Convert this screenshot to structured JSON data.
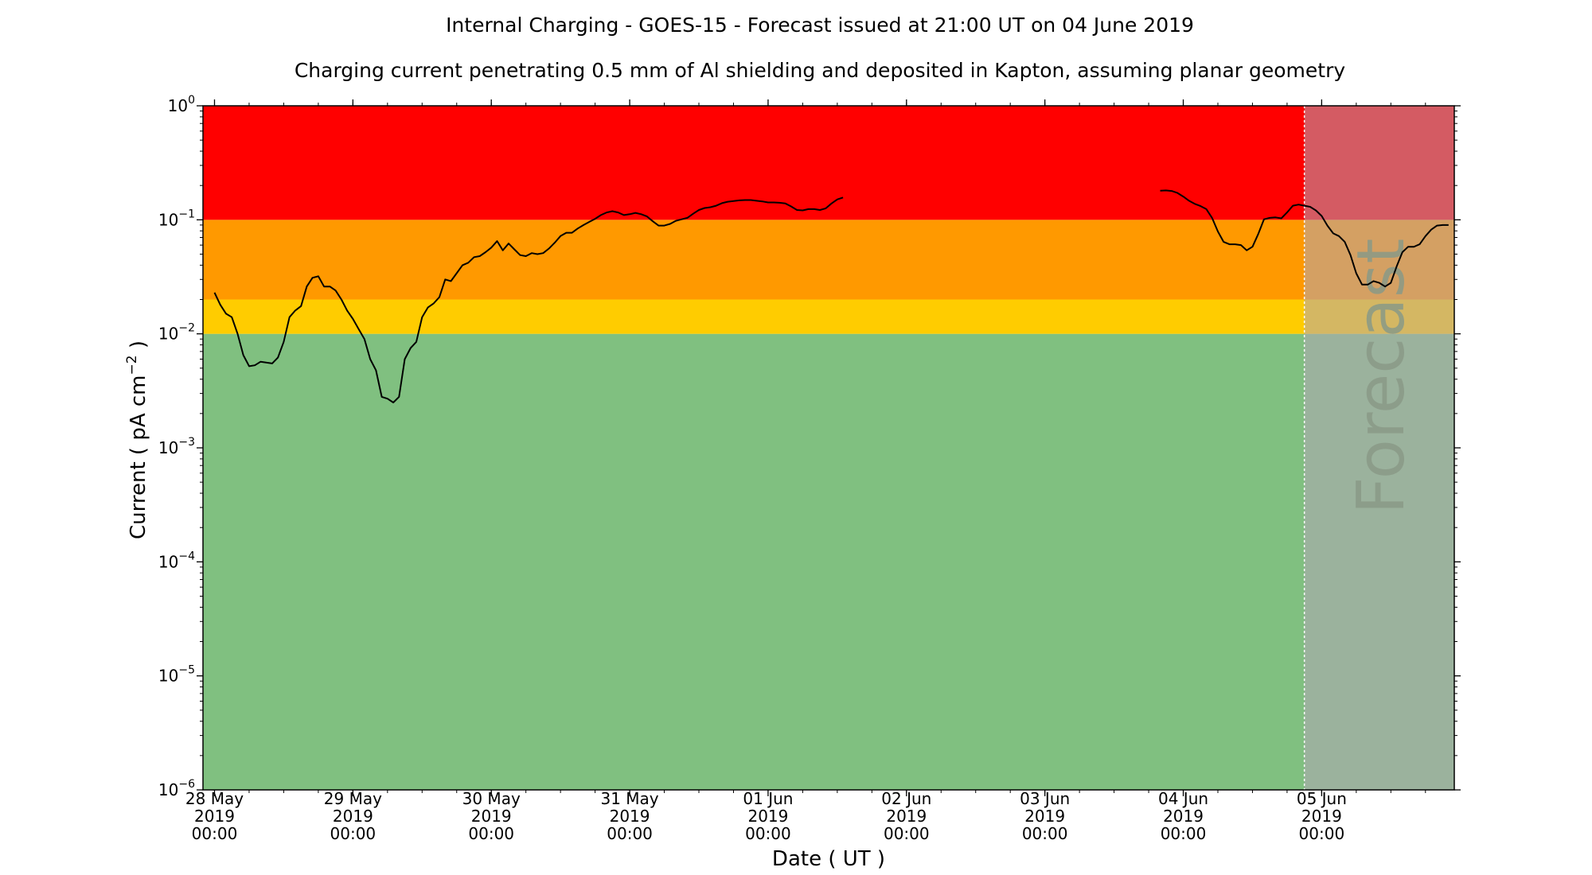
{
  "chart_data": {
    "type": "line",
    "title": "Internal Charging - GOES-15 - Forecast issued at 21:00 UT on 04 June 2019",
    "subtitle": "Charging current penetrating 0.5 mm of Al shielding and deposited in Kapton, assuming planar geometry",
    "xlabel": "Date ( UT )",
    "ylabel": "Current ( pA cm",
    "ylabel_exp": "−2",
    "ylabel_end": " )",
    "y_scale": "log",
    "ylim": [
      1e-06,
      1
    ],
    "xlim": [
      "2019-05-27T22:00",
      "2019-06-05T23:00"
    ],
    "x_tick_dates": [
      "2019-05-28T00:00",
      "2019-05-29T00:00",
      "2019-05-30T00:00",
      "2019-05-31T00:00",
      "2019-06-01T00:00",
      "2019-06-02T00:00",
      "2019-06-03T00:00",
      "2019-06-04T00:00",
      "2019-06-05T00:00"
    ],
    "x_tick_labels": [
      [
        "28 May",
        "2019",
        "00:00"
      ],
      [
        "29 May",
        "2019",
        "00:00"
      ],
      [
        "30 May",
        "2019",
        "00:00"
      ],
      [
        "31 May",
        "2019",
        "00:00"
      ],
      [
        "01 Jun",
        "2019",
        "00:00"
      ],
      [
        "02 Jun",
        "2019",
        "00:00"
      ],
      [
        "03 Jun",
        "2019",
        "00:00"
      ],
      [
        "04 Jun",
        "2019",
        "00:00"
      ],
      [
        "05 Jun",
        "2019",
        "00:00"
      ]
    ],
    "y_ticks": [
      {
        "value": 1e-06,
        "exp": "−6"
      },
      {
        "value": 1e-05,
        "exp": "−5"
      },
      {
        "value": 0.0001,
        "exp": "−4"
      },
      {
        "value": 0.001,
        "exp": "−3"
      },
      {
        "value": 0.01,
        "exp": "−2"
      },
      {
        "value": 0.1,
        "exp": "−1"
      },
      {
        "value": 1,
        "exp": "0"
      }
    ],
    "y_tick_base": "10",
    "bands": [
      {
        "from": 1e-06,
        "to": 0.01,
        "color": "#80c080"
      },
      {
        "from": 0.01,
        "to": 0.02,
        "color": "#ffcc00"
      },
      {
        "from": 0.02,
        "to": 0.1,
        "color": "#ff9900"
      },
      {
        "from": 0.1,
        "to": 1,
        "color": "#ff0000"
      }
    ],
    "forecast_start": "2019-06-04T21:00",
    "forecast_label": "Forecast",
    "forecast_overlay_color": "#b0a5b5",
    "line_color": "#000000",
    "grid": false,
    "series": [
      {
        "segments": [
          [
            [
              "2019-05-28T00:00",
              0.023
            ],
            [
              "2019-05-28T01:00",
              0.018
            ],
            [
              "2019-05-28T02:00",
              0.015
            ],
            [
              "2019-05-28T03:00",
              0.014
            ],
            [
              "2019-05-28T04:00",
              0.01
            ],
            [
              "2019-05-28T05:00",
              0.0065
            ],
            [
              "2019-05-28T06:00",
              0.0052
            ],
            [
              "2019-05-28T07:00",
              0.0053
            ],
            [
              "2019-05-28T08:00",
              0.0057
            ],
            [
              "2019-05-28T10:00",
              0.0055
            ],
            [
              "2019-05-28T11:00",
              0.0062
            ],
            [
              "2019-05-28T12:00",
              0.0085
            ],
            [
              "2019-05-28T13:00",
              0.014
            ],
            [
              "2019-05-28T14:00",
              0.016
            ],
            [
              "2019-05-28T15:00",
              0.0175
            ],
            [
              "2019-05-28T16:00",
              0.026
            ],
            [
              "2019-05-28T17:00",
              0.031
            ],
            [
              "2019-05-28T18:00",
              0.032
            ],
            [
              "2019-05-28T19:00",
              0.026
            ],
            [
              "2019-05-28T20:00",
              0.026
            ],
            [
              "2019-05-28T21:00",
              0.024
            ],
            [
              "2019-05-28T22:00",
              0.02
            ],
            [
              "2019-05-28T23:00",
              0.016
            ],
            [
              "2019-05-29T00:00",
              0.0135
            ],
            [
              "2019-05-29T01:00",
              0.011
            ],
            [
              "2019-05-29T02:00",
              0.009
            ],
            [
              "2019-05-29T03:00",
              0.006
            ],
            [
              "2019-05-29T04:00",
              0.0048
            ],
            [
              "2019-05-29T05:00",
              0.0028
            ],
            [
              "2019-05-29T06:00",
              0.0027
            ],
            [
              "2019-05-29T07:00",
              0.0025
            ],
            [
              "2019-05-29T08:00",
              0.0028
            ],
            [
              "2019-05-29T09:00",
              0.006
            ],
            [
              "2019-05-29T10:00",
              0.0075
            ],
            [
              "2019-05-29T11:00",
              0.0085
            ],
            [
              "2019-05-29T12:00",
              0.014
            ],
            [
              "2019-05-29T13:00",
              0.017
            ],
            [
              "2019-05-29T14:00",
              0.0185
            ],
            [
              "2019-05-29T15:00",
              0.021
            ],
            [
              "2019-05-29T16:00",
              0.03
            ],
            [
              "2019-05-29T17:00",
              0.029
            ],
            [
              "2019-05-29T18:00",
              0.034
            ],
            [
              "2019-05-29T19:00",
              0.04
            ],
            [
              "2019-05-29T20:00",
              0.042
            ],
            [
              "2019-05-29T21:00",
              0.047
            ],
            [
              "2019-05-29T22:00",
              0.048
            ],
            [
              "2019-05-29T23:00",
              0.052
            ],
            [
              "2019-05-30T00:00",
              0.057
            ],
            [
              "2019-05-30T01:00",
              0.065
            ],
            [
              "2019-05-30T02:00",
              0.054
            ],
            [
              "2019-05-30T03:00",
              0.062
            ],
            [
              "2019-05-30T04:00",
              0.055
            ],
            [
              "2019-05-30T05:00",
              0.049
            ],
            [
              "2019-05-30T06:00",
              0.048
            ],
            [
              "2019-05-30T07:00",
              0.051
            ],
            [
              "2019-05-30T08:00",
              0.05
            ],
            [
              "2019-05-30T09:00",
              0.051
            ],
            [
              "2019-05-30T10:00",
              0.056
            ],
            [
              "2019-05-30T11:00",
              0.063
            ],
            [
              "2019-05-30T12:00",
              0.072
            ],
            [
              "2019-05-30T13:00",
              0.077
            ],
            [
              "2019-05-30T14:00",
              0.077
            ],
            [
              "2019-05-30T15:00",
              0.084
            ],
            [
              "2019-05-30T16:00",
              0.09
            ],
            [
              "2019-05-30T17:00",
              0.096
            ],
            [
              "2019-05-30T18:00",
              0.102
            ],
            [
              "2019-05-30T19:00",
              0.11
            ],
            [
              "2019-05-30T20:00",
              0.116
            ],
            [
              "2019-05-30T21:00",
              0.119
            ],
            [
              "2019-05-30T22:00",
              0.116
            ],
            [
              "2019-05-30T23:00",
              0.11
            ],
            [
              "2019-05-31T00:00",
              0.112
            ],
            [
              "2019-05-31T01:00",
              0.115
            ],
            [
              "2019-05-31T02:00",
              0.112
            ],
            [
              "2019-05-31T03:00",
              0.107
            ],
            [
              "2019-05-31T04:00",
              0.097
            ],
            [
              "2019-05-31T05:00",
              0.089
            ],
            [
              "2019-05-31T06:00",
              0.089
            ],
            [
              "2019-05-31T07:00",
              0.092
            ],
            [
              "2019-05-31T08:00",
              0.098
            ],
            [
              "2019-05-31T09:00",
              0.101
            ],
            [
              "2019-05-31T10:00",
              0.104
            ],
            [
              "2019-05-31T11:00",
              0.113
            ],
            [
              "2019-05-31T12:00",
              0.122
            ],
            [
              "2019-05-31T13:00",
              0.127
            ],
            [
              "2019-05-31T14:00",
              0.129
            ],
            [
              "2019-05-31T15:00",
              0.133
            ],
            [
              "2019-05-31T16:00",
              0.14
            ],
            [
              "2019-05-31T17:00",
              0.144
            ],
            [
              "2019-05-31T18:00",
              0.146
            ],
            [
              "2019-05-31T19:00",
              0.148
            ],
            [
              "2019-05-31T20:00",
              0.149
            ],
            [
              "2019-05-31T21:00",
              0.149
            ],
            [
              "2019-05-31T22:00",
              0.147
            ],
            [
              "2019-05-31T23:00",
              0.145
            ],
            [
              "2019-06-01T00:00",
              0.142
            ],
            [
              "2019-06-01T01:00",
              0.142
            ],
            [
              "2019-06-01T02:00",
              0.141
            ],
            [
              "2019-06-01T03:00",
              0.139
            ],
            [
              "2019-06-01T04:00",
              0.131
            ],
            [
              "2019-06-01T05:00",
              0.122
            ],
            [
              "2019-06-01T06:00",
              0.121
            ],
            [
              "2019-06-01T07:00",
              0.124
            ],
            [
              "2019-06-01T08:00",
              0.124
            ],
            [
              "2019-06-01T09:00",
              0.122
            ],
            [
              "2019-06-01T10:00",
              0.126
            ],
            [
              "2019-06-01T11:00",
              0.139
            ],
            [
              "2019-06-01T12:00",
              0.151
            ],
            [
              "2019-06-01T13:00",
              0.157
            ]
          ],
          [
            [
              "2019-06-03T20:00",
              0.18
            ],
            [
              "2019-06-03T21:00",
              0.181
            ],
            [
              "2019-06-03T22:00",
              0.179
            ],
            [
              "2019-06-03T23:00",
              0.172
            ],
            [
              "2019-06-04T00:00",
              0.16
            ],
            [
              "2019-06-04T01:00",
              0.147
            ],
            [
              "2019-06-04T02:00",
              0.138
            ],
            [
              "2019-06-04T03:00",
              0.132
            ],
            [
              "2019-06-04T04:00",
              0.124
            ],
            [
              "2019-06-04T05:00",
              0.104
            ],
            [
              "2019-06-04T06:00",
              0.079
            ],
            [
              "2019-06-04T07:00",
              0.064
            ],
            [
              "2019-06-04T08:00",
              0.061
            ],
            [
              "2019-06-04T09:00",
              0.061
            ],
            [
              "2019-06-04T10:00",
              0.06
            ],
            [
              "2019-06-04T11:00",
              0.054
            ],
            [
              "2019-06-04T12:00",
              0.058
            ],
            [
              "2019-06-04T13:00",
              0.075
            ],
            [
              "2019-06-04T14:00",
              0.101
            ],
            [
              "2019-06-04T15:00",
              0.104
            ],
            [
              "2019-06-04T16:00",
              0.105
            ],
            [
              "2019-06-04T17:00",
              0.103
            ],
            [
              "2019-06-04T18:00",
              0.116
            ],
            [
              "2019-06-04T19:00",
              0.133
            ],
            [
              "2019-06-04T20:00",
              0.136
            ],
            [
              "2019-06-04T21:00",
              0.133
            ],
            [
              "2019-06-04T22:00",
              0.13
            ],
            [
              "2019-06-04T23:00",
              0.121
            ],
            [
              "2019-06-05T00:00",
              0.108
            ],
            [
              "2019-06-05T01:00",
              0.089
            ],
            [
              "2019-06-05T02:00",
              0.076
            ],
            [
              "2019-06-05T03:00",
              0.072
            ],
            [
              "2019-06-05T04:00",
              0.064
            ],
            [
              "2019-06-05T05:00",
              0.049
            ],
            [
              "2019-06-05T06:00",
              0.034
            ],
            [
              "2019-06-05T07:00",
              0.027
            ],
            [
              "2019-06-05T08:00",
              0.027
            ],
            [
              "2019-06-05T09:00",
              0.029
            ],
            [
              "2019-06-05T10:00",
              0.028
            ],
            [
              "2019-06-05T11:00",
              0.026
            ],
            [
              "2019-06-05T12:00",
              0.028
            ],
            [
              "2019-06-05T13:00",
              0.039
            ],
            [
              "2019-06-05T14:00",
              0.052
            ],
            [
              "2019-06-05T15:00",
              0.058
            ],
            [
              "2019-06-05T16:00",
              0.058
            ],
            [
              "2019-06-05T17:00",
              0.061
            ],
            [
              "2019-06-05T18:00",
              0.072
            ],
            [
              "2019-06-05T19:00",
              0.082
            ],
            [
              "2019-06-05T20:00",
              0.089
            ],
            [
              "2019-06-05T21:00",
              0.09
            ],
            [
              "2019-06-05T22:00",
              0.09
            ]
          ]
        ]
      }
    ]
  }
}
